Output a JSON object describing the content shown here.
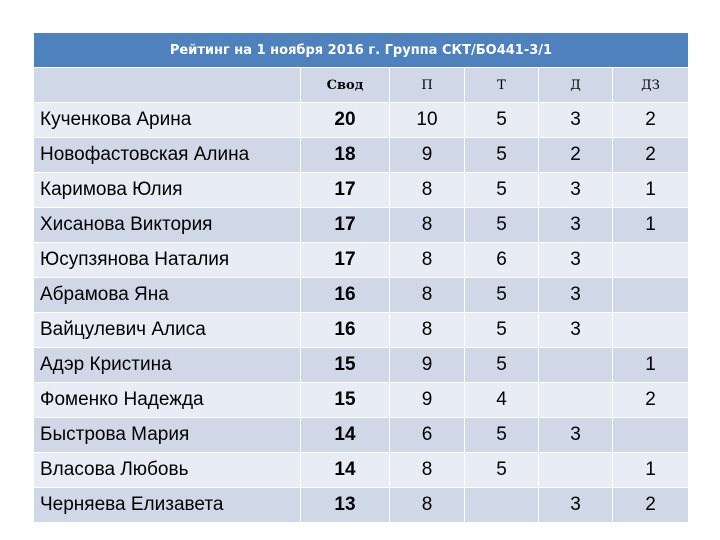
{
  "title": "Рейтинг на 1 ноября 2016 г. Группа СКТ/БО441-3/1",
  "columns": [
    "",
    "Свод",
    "П",
    "Т",
    "Д",
    "ДЗ"
  ],
  "rows": [
    {
      "name": "Кученкова Арина",
      "svod": "20",
      "p": "10",
      "t": "5",
      "d": "3",
      "dz": "2"
    },
    {
      "name": "Новофастовская Алина",
      "svod": "18",
      "p": "9",
      "t": "5",
      "d": "2",
      "dz": "2"
    },
    {
      "name": "Каримова Юлия",
      "svod": "17",
      "p": "8",
      "t": "5",
      "d": "3",
      "dz": "1"
    },
    {
      "name": "Хисанова Виктория",
      "svod": "17",
      "p": "8",
      "t": "5",
      "d": "3",
      "dz": "1"
    },
    {
      "name": "Юсупзянова Наталия",
      "svod": "17",
      "p": "8",
      "t": "6",
      "d": "3",
      "dz": ""
    },
    {
      "name": "Абрамова Яна",
      "svod": "16",
      "p": "8",
      "t": "5",
      "d": "3",
      "dz": ""
    },
    {
      "name": "Вайцулевич Алиса",
      "svod": "16",
      "p": "8",
      "t": "5",
      "d": "3",
      "dz": ""
    },
    {
      "name": "Адэр Кристина",
      "svod": "15",
      "p": "9",
      "t": "5",
      "d": "",
      "dz": "1"
    },
    {
      "name": "Фоменко Надежда",
      "svod": "15",
      "p": "9",
      "t": "4",
      "d": "",
      "dz": "2"
    },
    {
      "name": "Быстрова Мария",
      "svod": "14",
      "p": "6",
      "t": "5",
      "d": "3",
      "dz": ""
    },
    {
      "name": "Власова Любовь",
      "svod": "14",
      "p": "8",
      "t": "5",
      "d": "",
      "dz": "1"
    },
    {
      "name": "Черняева Елизавета",
      "svod": "13",
      "p": "8",
      "t": "",
      "d": "3",
      "dz": "2"
    }
  ],
  "colors": {
    "header": "#4f81bd",
    "row_dark": "#d0d8e8",
    "row_light": "#e8ecf4"
  }
}
